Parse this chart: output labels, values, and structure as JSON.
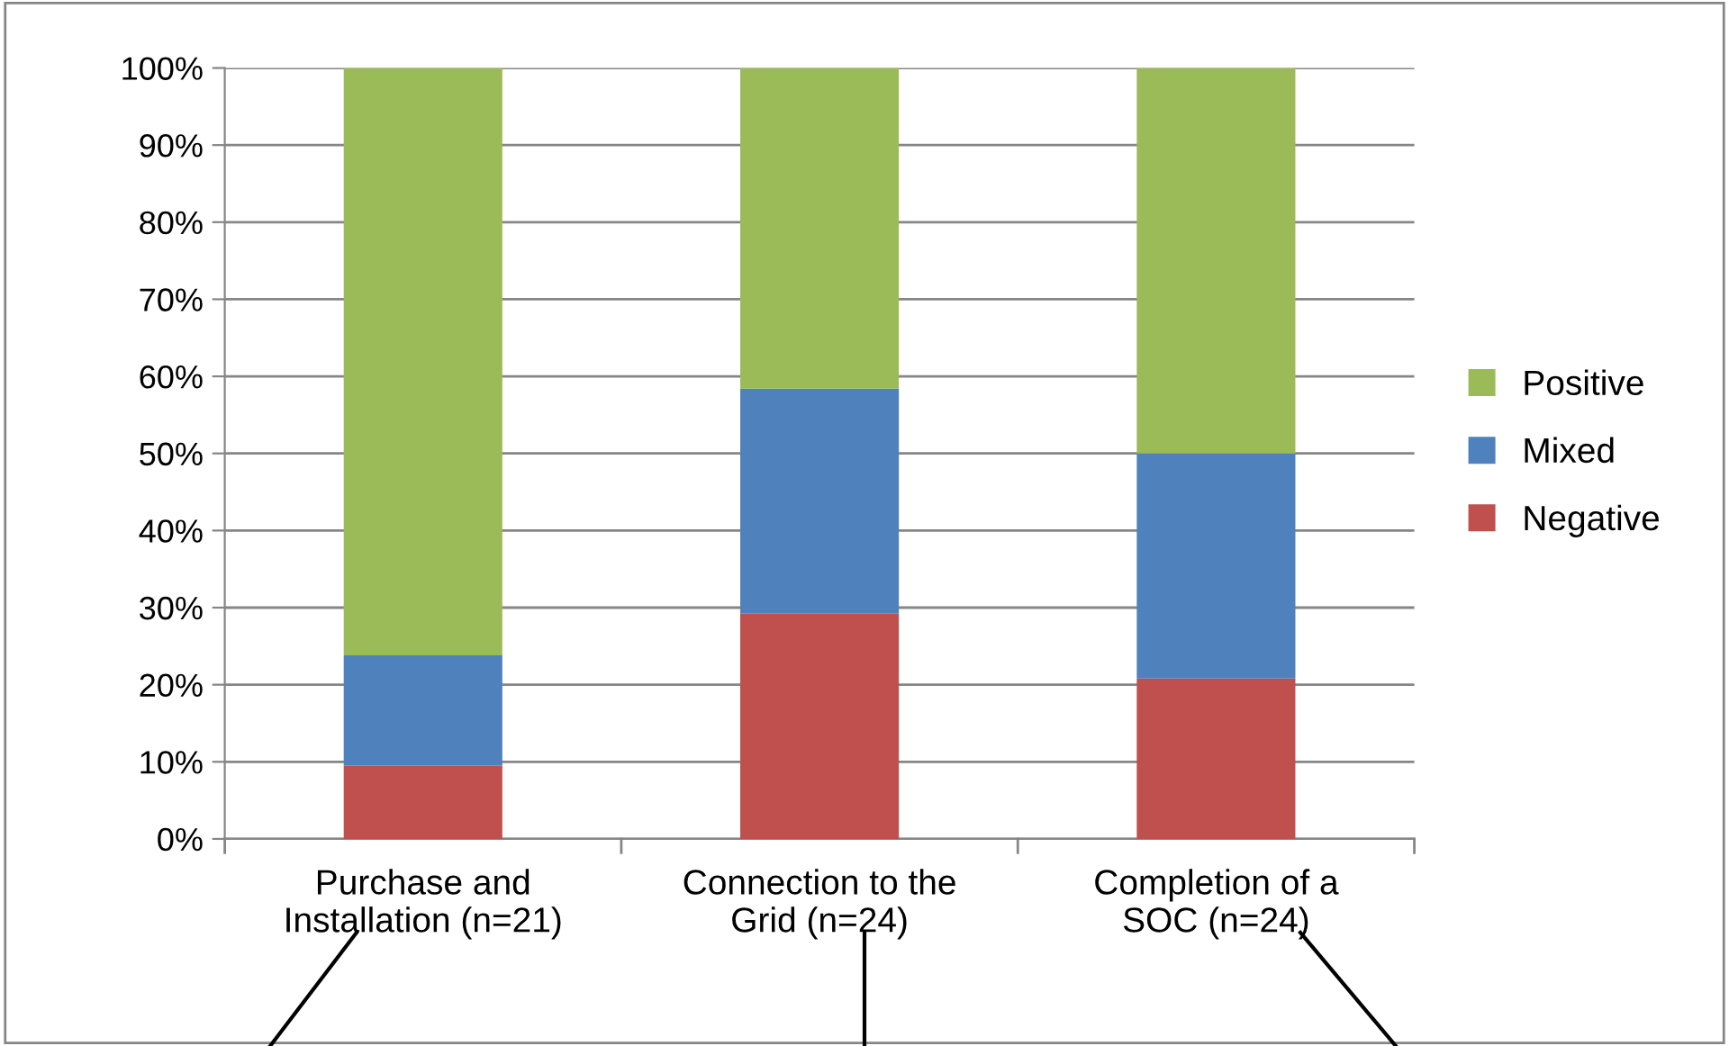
{
  "chart_data": {
    "type": "bar",
    "stacked": true,
    "categories": [
      "Purchase and\nInstallation (n=21)",
      "Connection to the\nGrid (n=24)",
      "Completion of a\nSOC (n=24)"
    ],
    "series": [
      {
        "name": "Negative",
        "color": "#c0504d",
        "values": [
          9.5,
          29.2,
          20.8
        ]
      },
      {
        "name": "Mixed",
        "color": "#4f81bd",
        "values": [
          14.3,
          29.2,
          29.2
        ]
      },
      {
        "name": "Positive",
        "color": "#9bbb59",
        "values": [
          76.2,
          41.6,
          50.0
        ]
      }
    ],
    "ylim": [
      0,
      100
    ],
    "yticks": [
      {
        "value": 0,
        "label": "0%"
      },
      {
        "value": 10,
        "label": "10%"
      },
      {
        "value": 20,
        "label": "20%"
      },
      {
        "value": 30,
        "label": "30%"
      },
      {
        "value": 40,
        "label": "40%"
      },
      {
        "value": 50,
        "label": "50%"
      },
      {
        "value": 60,
        "label": "60%"
      },
      {
        "value": 70,
        "label": "70%"
      },
      {
        "value": 80,
        "label": "80%"
      },
      {
        "value": 90,
        "label": "90%"
      },
      {
        "value": 100,
        "label": "100%"
      }
    ],
    "grid": "y",
    "legend": "right"
  }
}
